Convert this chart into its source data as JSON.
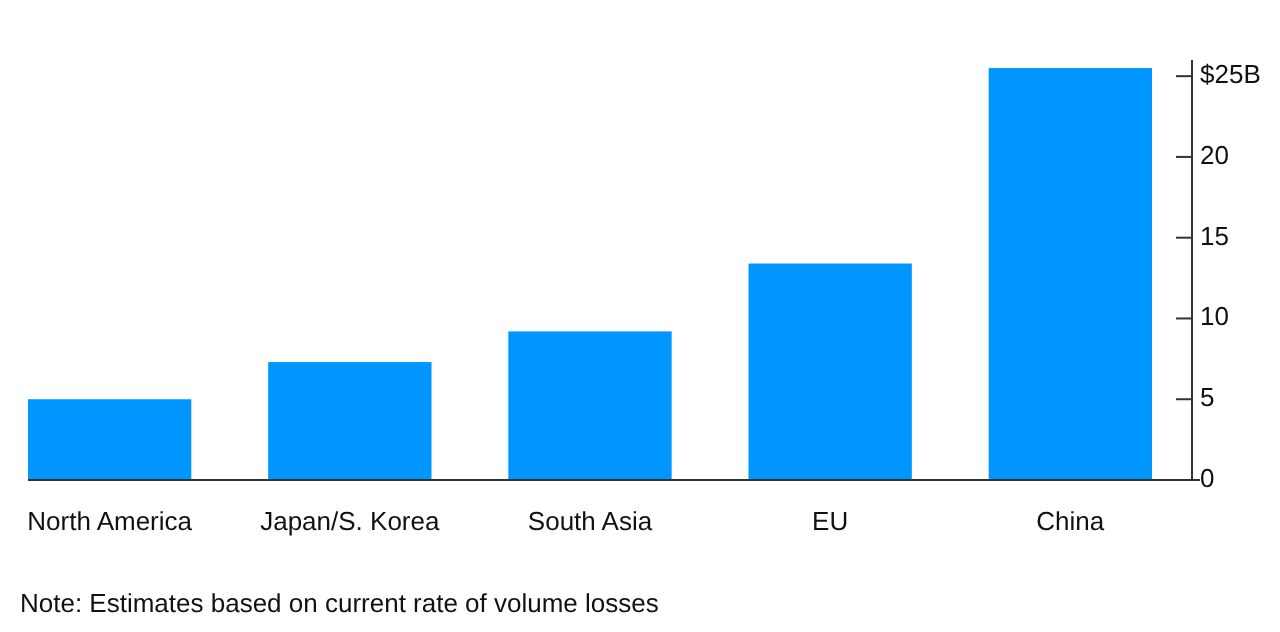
{
  "chart_data": {
    "type": "bar",
    "categories": [
      "North America",
      "Japan/S. Korea",
      "South Asia",
      "EU",
      "China"
    ],
    "values": [
      5,
      7.3,
      9.2,
      13.4,
      25.5
    ],
    "color": "#0096ff",
    "ylim": [
      0,
      26
    ],
    "yticks": [
      0,
      5,
      10,
      15,
      20,
      {
        "value": 25,
        "label": "$25B"
      }
    ],
    "grid": false,
    "annotations": [
      "Note: Estimates based on current rate of volume losses"
    ]
  }
}
